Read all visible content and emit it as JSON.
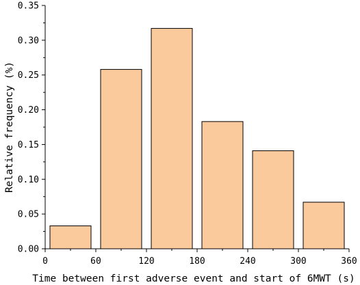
{
  "chart_data": {
    "type": "bar",
    "title": "",
    "xlabel": "Time between first adverse event and start of 6MWT (s)",
    "ylabel": "Relative frequency  (%)",
    "xlim": [
      0,
      360
    ],
    "ylim": [
      0,
      0.35
    ],
    "x_ticks": [
      "0",
      "60",
      "120",
      "180",
      "240",
      "300",
      "360"
    ],
    "y_ticks": [
      "0.00",
      "0.05",
      "0.10",
      "0.15",
      "0.20",
      "0.25",
      "0.30",
      "0.35"
    ],
    "bins": [
      {
        "from": 0,
        "to": 60,
        "value": 0.033
      },
      {
        "from": 60,
        "to": 120,
        "value": 0.258
      },
      {
        "from": 120,
        "to": 180,
        "value": 0.317
      },
      {
        "from": 180,
        "to": 240,
        "value": 0.183
      },
      {
        "from": 240,
        "to": 300,
        "value": 0.141
      },
      {
        "from": 300,
        "to": 360,
        "value": 0.067
      }
    ],
    "bar_color": "#FAC99C",
    "edge_color": "#000000",
    "grid": false,
    "legend": "none"
  }
}
